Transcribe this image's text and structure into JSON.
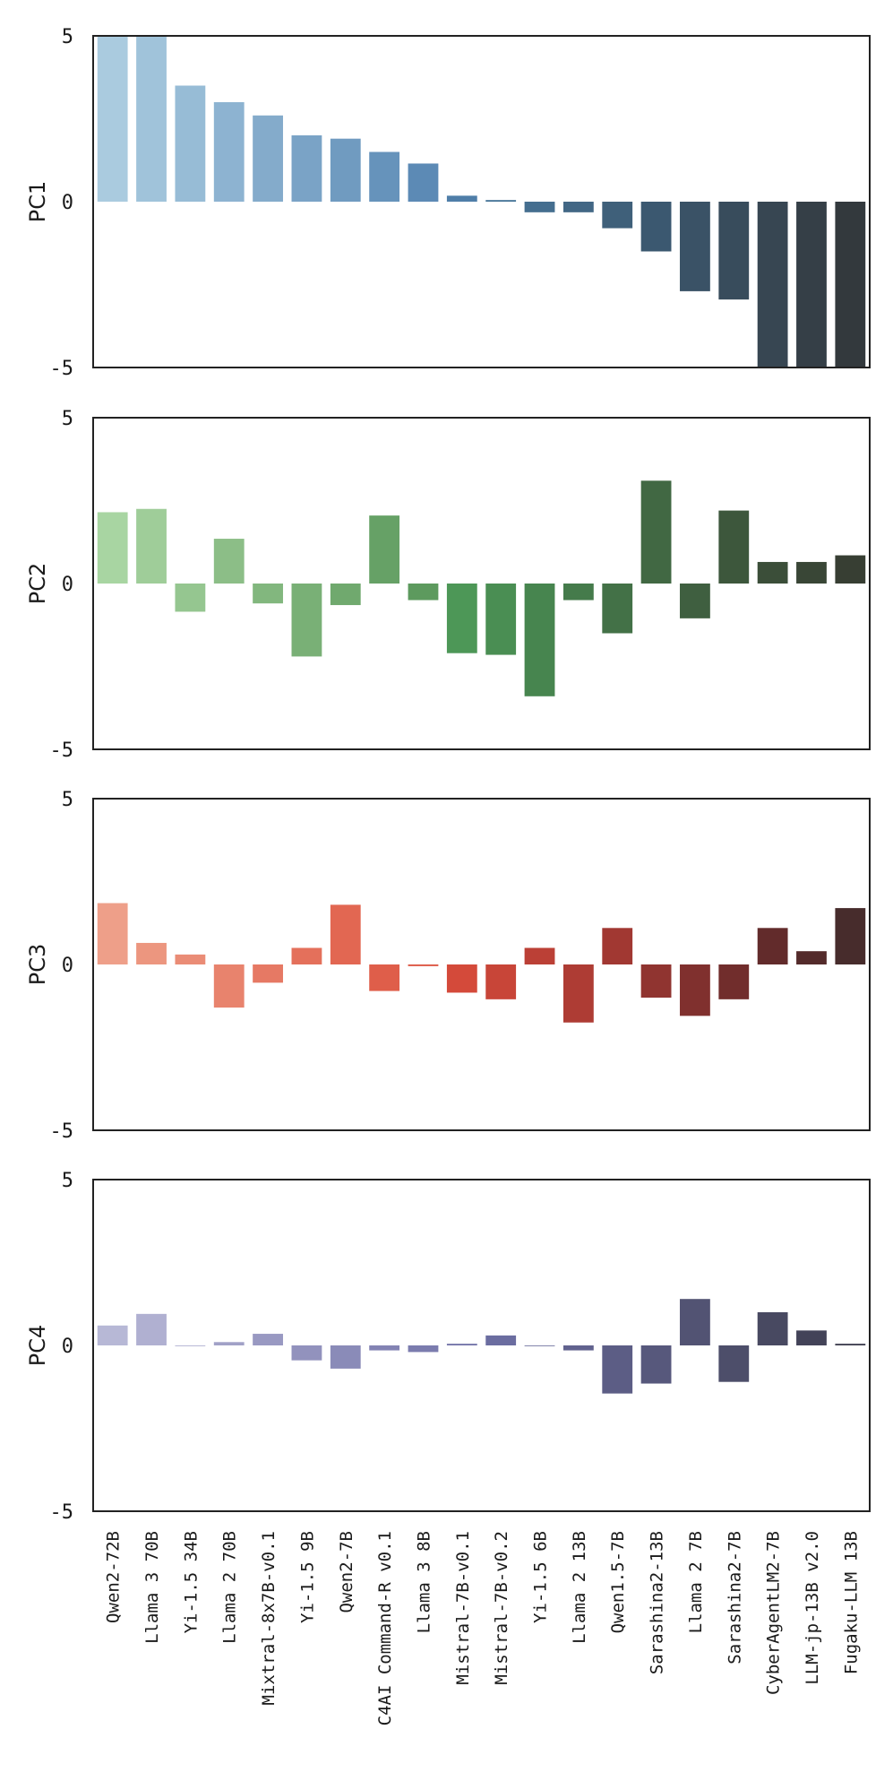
{
  "chart_data": [
    {
      "type": "bar",
      "ylabel": "PC1",
      "ylim": [
        -5,
        5
      ],
      "yticks": [
        "5",
        "0",
        "-5"
      ],
      "palette": [
        "#aacbdf",
        "#a0c3da",
        "#97bcd6",
        "#8db3d1",
        "#84abcb",
        "#7aa3c6",
        "#709bc0",
        "#6693bb",
        "#5c8ab5",
        "#4f7ea8",
        "#487599",
        "#456e8f",
        "#426785",
        "#3f607a",
        "#3b5870",
        "#3a5266",
        "#384c5c",
        "#374652",
        "#353f47",
        "#33393d"
      ],
      "values": [
        5.5,
        5.5,
        3.5,
        3.0,
        2.6,
        2.0,
        1.9,
        1.5,
        1.15,
        0.18,
        0.05,
        -0.32,
        -0.32,
        -0.8,
        -1.5,
        -2.7,
        -2.95,
        -5.5,
        -5.5,
        -5.5
      ]
    },
    {
      "type": "bar",
      "ylabel": "PC2",
      "ylim": [
        -5,
        5
      ],
      "yticks": [
        "5",
        "0",
        "-5"
      ],
      "palette": [
        "#a8d5a2",
        "#9fcd99",
        "#95c690",
        "#8cbe87",
        "#82b77e",
        "#79b076",
        "#70a96e",
        "#66a166",
        "#5d9a5e",
        "#4d9757",
        "#4a8e53",
        "#47854f",
        "#457b4b",
        "#437147",
        "#416843",
        "#3f5f40",
        "#3d573c",
        "#3b4e39",
        "#394636",
        "#373e33"
      ],
      "values": [
        2.15,
        2.25,
        -0.85,
        1.35,
        -0.6,
        -2.2,
        -0.65,
        2.05,
        -0.5,
        -2.1,
        -2.15,
        -3.4,
        -0.5,
        -1.5,
        3.1,
        -1.05,
        2.2,
        0.65,
        0.65,
        0.85
      ]
    },
    {
      "type": "bar",
      "ylabel": "PC3",
      "ylim": [
        -5,
        5
      ],
      "yticks": [
        "5",
        "0",
        "-5"
      ],
      "palette": [
        "#ee9f89",
        "#ec967f",
        "#ea8c76",
        "#e8836d",
        "#e67964",
        "#e4705b",
        "#e26752",
        "#df5e4a",
        "#dc5542",
        "#d44a3a",
        "#c84538",
        "#bb4036",
        "#ae3c34",
        "#a13832",
        "#903430",
        "#80302e",
        "#712d2c",
        "#622b2b",
        "#542b2b",
        "#472c2c"
      ],
      "values": [
        1.85,
        0.65,
        0.3,
        -1.3,
        -0.55,
        0.5,
        1.8,
        -0.8,
        -0.05,
        -0.85,
        -1.05,
        0.5,
        -1.75,
        1.1,
        -1.0,
        -1.55,
        -1.05,
        1.1,
        0.4,
        1.7
      ]
    },
    {
      "type": "bar",
      "ylabel": "PC4",
      "ylim": [
        -5,
        5
      ],
      "yticks": [
        "5",
        "0",
        "-5"
      ],
      "palette": [
        "#b7b8d6",
        "#b0b0d1",
        "#a8a8cc",
        "#a1a1c7",
        "#9999c2",
        "#9292bd",
        "#8a8bb8",
        "#8383b3",
        "#7b7cae",
        "#7274a8",
        "#6b6da0",
        "#666797",
        "#61628e",
        "#5c5d85",
        "#57587c",
        "#525373",
        "#4d4e6a",
        "#484961",
        "#434358",
        "#3e3e4f"
      ],
      "values": [
        0.6,
        0.95,
        0.0,
        0.1,
        0.35,
        -0.45,
        -0.7,
        -0.15,
        -0.2,
        0.05,
        0.3,
        0.0,
        -0.15,
        -1.45,
        -1.15,
        1.4,
        -1.1,
        1.0,
        0.45,
        0.05
      ]
    }
  ],
  "categories": [
    "Qwen2-72B",
    "Llama 3 70B",
    "Yi-1.5 34B",
    "Llama 2 70B",
    "Mixtral-8x7B-v0.1",
    "Yi-1.5 9B",
    "Qwen2-7B",
    "C4AI Command-R v0.1",
    "Llama 3 8B",
    "Mistral-7B-v0.1",
    "Mistral-7B-v0.2",
    "Yi-1.5 6B",
    "Llama 2 13B",
    "Qwen1.5-7B",
    "Sarashina2-13B",
    "Llama 2 7B",
    "Sarashina2-7B",
    "CyberAgentLM2-7B",
    "LLM-jp-13B v2.0",
    "Fugaku-LLM 13B"
  ]
}
